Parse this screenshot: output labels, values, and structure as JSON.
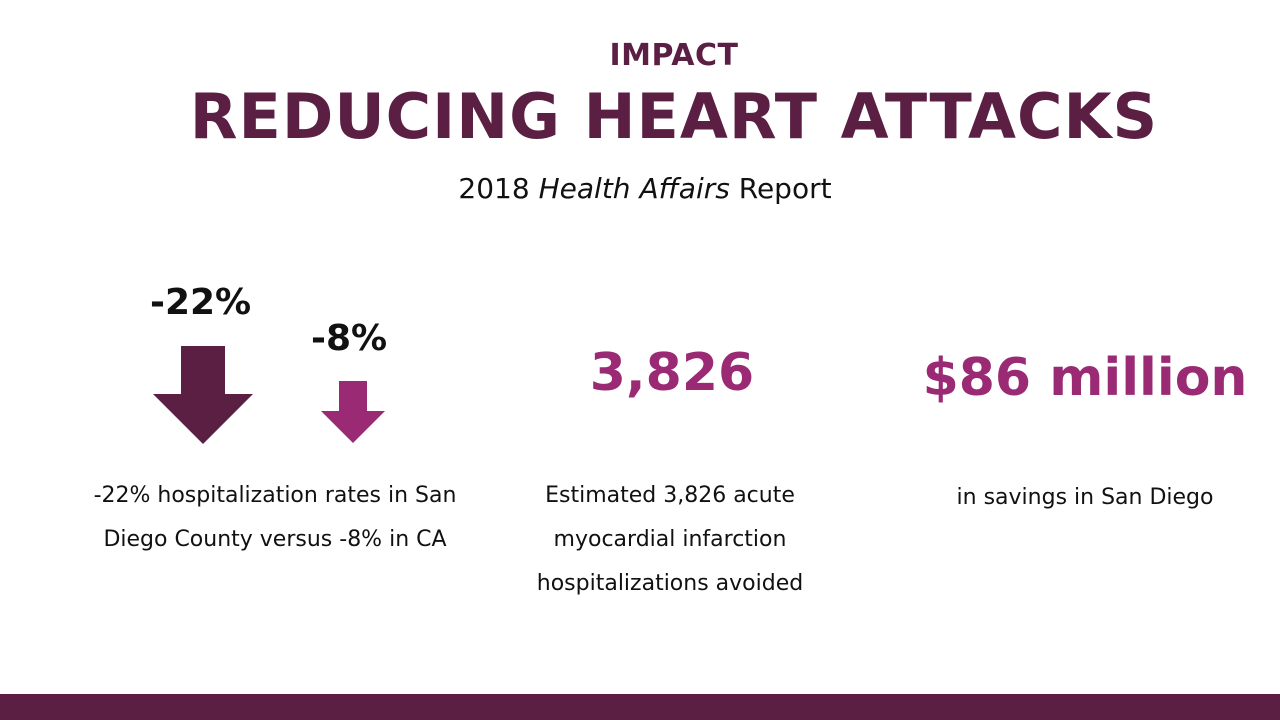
{
  "header": {
    "kicker": "IMPACT",
    "title": "REDUCING HEART ATTACKS",
    "subtitle_year": "2018",
    "subtitle_source": "Health Affairs",
    "subtitle_suffix": "Report"
  },
  "stats": {
    "san_diego_change": "-22%",
    "california_change": "-8%",
    "hospitalizations_avoided": "3,826",
    "savings": "$86 million"
  },
  "captions": {
    "hospitalization_rates": "-22% hospitalization rates in San Diego County versus -8% in CA",
    "avoided": "Estimated 3,826 acute myocardial infarction hospitalizations avoided",
    "savings": "in savings in San Diego"
  },
  "icons": {
    "large_arrow": "down-arrow-icon",
    "small_arrow": "down-arrow-icon"
  },
  "colors": {
    "dark_plum": "#5b1f44",
    "magenta": "#9b2a74",
    "text": "#111111"
  }
}
